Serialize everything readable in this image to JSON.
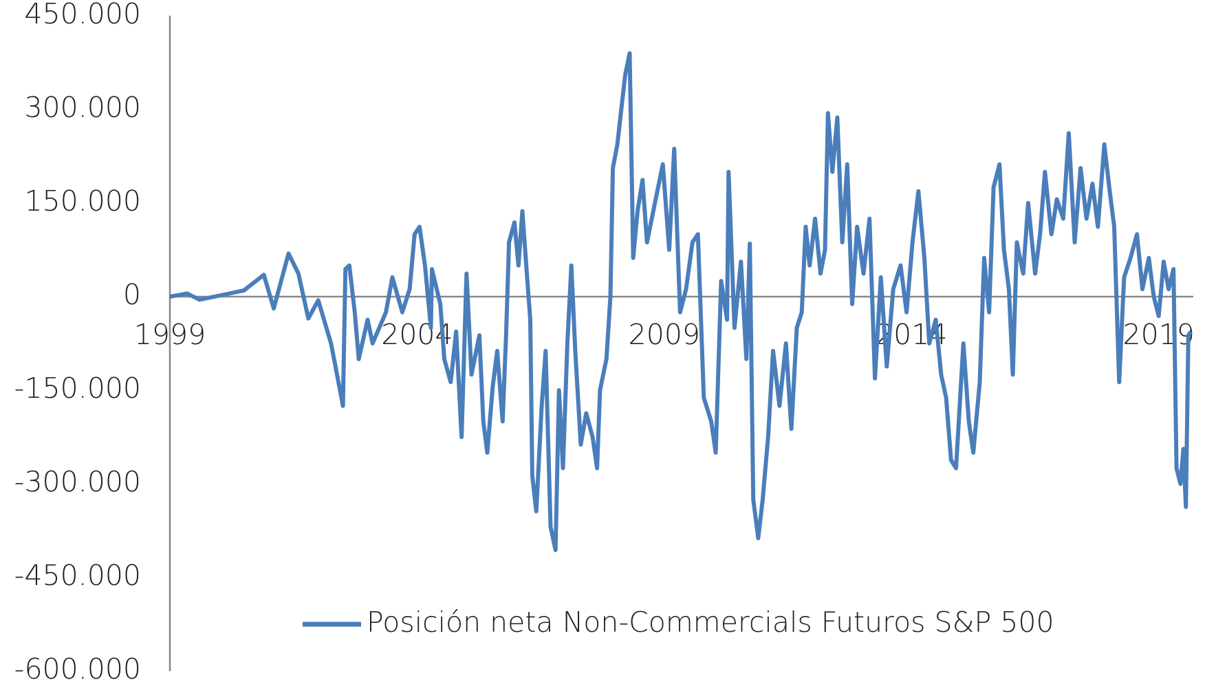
{
  "chart_data": {
    "type": "line",
    "x": [
      1999.0,
      1999.35,
      1999.6,
      1999.9,
      2000.2,
      2000.5,
      2000.9,
      2001.1,
      2001.4,
      2001.6,
      2001.8,
      2002.0,
      2002.26,
      2002.35,
      2002.5,
      2002.55,
      2002.63,
      2002.74,
      2002.82,
      2003.0,
      2003.1,
      2003.37,
      2003.5,
      2003.7,
      2003.85,
      2003.95,
      2004.05,
      2004.16,
      2004.28,
      2004.3,
      2004.47,
      2004.55,
      2004.68,
      2004.79,
      2004.9,
      2005.0,
      2005.1,
      2005.26,
      2005.34,
      2005.42,
      2005.53,
      2005.62,
      2005.73,
      2005.8,
      2005.86,
      2005.97,
      2006.05,
      2006.13,
      2006.22,
      2006.29,
      2006.33,
      2006.41,
      2006.52,
      2006.6,
      2006.7,
      2006.8,
      2006.87,
      2006.95,
      2007.04,
      2007.12,
      2007.2,
      2007.31,
      2007.42,
      2007.55,
      2007.64,
      2007.7,
      2007.83,
      2007.91,
      2007.96,
      2008.05,
      2008.13,
      2008.21,
      2008.3,
      2008.37,
      2008.46,
      2008.56,
      2008.65,
      2008.81,
      2008.97,
      2009.1,
      2009.2,
      2009.32,
      2009.44,
      2009.57,
      2009.68,
      2009.8,
      2009.95,
      2010.04,
      2010.15,
      2010.27,
      2010.3,
      2010.42,
      2010.55,
      2010.66,
      2010.73,
      2010.8,
      2010.9,
      2010.99,
      2011.1,
      2011.2,
      2011.33,
      2011.46,
      2011.57,
      2011.68,
      2011.78,
      2011.86,
      2011.94,
      2012.05,
      2012.16,
      2012.25,
      2012.31,
      2012.4,
      2012.5,
      2012.6,
      2012.7,
      2012.8,
      2012.9,
      2013.03,
      2013.15,
      2013.26,
      2013.38,
      2013.5,
      2013.63,
      2013.78,
      2013.9,
      2014.02,
      2014.14,
      2014.26,
      2014.36,
      2014.49,
      2014.6,
      2014.7,
      2014.8,
      2014.9,
      2015.05,
      2015.16,
      2015.25,
      2015.38,
      2015.47,
      2015.57,
      2015.66,
      2015.78,
      2015.87,
      2015.97,
      2016.05,
      2016.13,
      2016.26,
      2016.36,
      2016.5,
      2016.6,
      2016.7,
      2016.83,
      2016.94,
      2017.07,
      2017.18,
      2017.3,
      2017.42,
      2017.54,
      2017.66,
      2017.77,
      2017.9,
      2018.0,
      2018.1,
      2018.2,
      2018.3,
      2018.43,
      2018.56,
      2018.67,
      2018.8,
      2018.9,
      2019.0,
      2019.1,
      2019.2,
      2019.3,
      2019.36,
      2019.44,
      2019.5,
      2019.55,
      2019.6,
      2019.65
    ],
    "series": [
      {
        "name": "Posición neta Non-Commercials Futuros S&P 500",
        "color": "#4a7ebb",
        "values": [
          0,
          5000,
          -5000,
          0,
          5000,
          10000,
          35000,
          -19000,
          69000,
          37000,
          -35000,
          -6000,
          -75000,
          -112000,
          -175000,
          44000,
          50000,
          -25000,
          -100000,
          -37000,
          -75000,
          -25000,
          31000,
          -25000,
          12000,
          100000,
          112000,
          50000,
          -50000,
          44000,
          -12000,
          -100000,
          -137000,
          -56000,
          -225000,
          37000,
          -125000,
          -62000,
          -200000,
          -250000,
          -144000,
          -87000,
          -200000,
          -62000,
          87000,
          119000,
          50000,
          137000,
          37000,
          -37000,
          -287000,
          -344000,
          -175000,
          -87000,
          -369000,
          -406000,
          -150000,
          -275000,
          -75000,
          50000,
          -87000,
          -237000,
          -187000,
          -225000,
          -275000,
          -150000,
          -100000,
          0,
          206000,
          244000,
          300000,
          356000,
          390000,
          62000,
          137000,
          187000,
          87000,
          150000,
          212000,
          75000,
          237000,
          -25000,
          12000,
          87000,
          100000,
          -162000,
          -200000,
          -250000,
          25000,
          -37000,
          200000,
          -50000,
          56000,
          -100000,
          85000,
          -325000,
          -387000,
          -325000,
          -225000,
          -87000,
          -175000,
          -75000,
          -212000,
          -50000,
          -25000,
          112000,
          50000,
          125000,
          37000,
          75000,
          294000,
          200000,
          287000,
          87000,
          212000,
          -12000,
          112000,
          37000,
          125000,
          -131000,
          31000,
          -112000,
          12000,
          50000,
          -25000,
          87000,
          169000,
          62000,
          -75000,
          -37000,
          -125000,
          -162000,
          -262000,
          -275000,
          -75000,
          -200000,
          -250000,
          -137000,
          62000,
          -25000,
          175000,
          212000,
          75000,
          12000,
          -125000,
          87000,
          37000,
          150000,
          37000,
          100000,
          200000,
          100000,
          156000,
          125000,
          262000,
          87000,
          206000,
          125000,
          181000,
          112000,
          244000,
          175000,
          112000,
          -137000,
          31000,
          62000,
          100000,
          12000,
          62000,
          0,
          -31000,
          56000,
          12000,
          44000,
          -275000,
          -300000,
          -244000,
          -337000,
          -62000,
          -56000
        ]
      }
    ],
    "xlim": [
      1999,
      2019.7
    ],
    "xticks": [
      1999,
      2004,
      2009,
      2014,
      2019
    ],
    "ylim": [
      -600000,
      450000
    ],
    "yticks": [
      {
        "value": -600000,
        "label": "-600.000"
      },
      {
        "value": -450000,
        "label": "-450.000"
      },
      {
        "value": -300000,
        "label": "-300.000"
      },
      {
        "value": -150000,
        "label": "-150.000"
      },
      0,
      {
        "value": 150000,
        "label": "150.000"
      },
      {
        "value": 300000,
        "label": "300.000"
      },
      {
        "value": 450000,
        "label": "450.000"
      }
    ],
    "legend": "bottom",
    "grid": false
  }
}
